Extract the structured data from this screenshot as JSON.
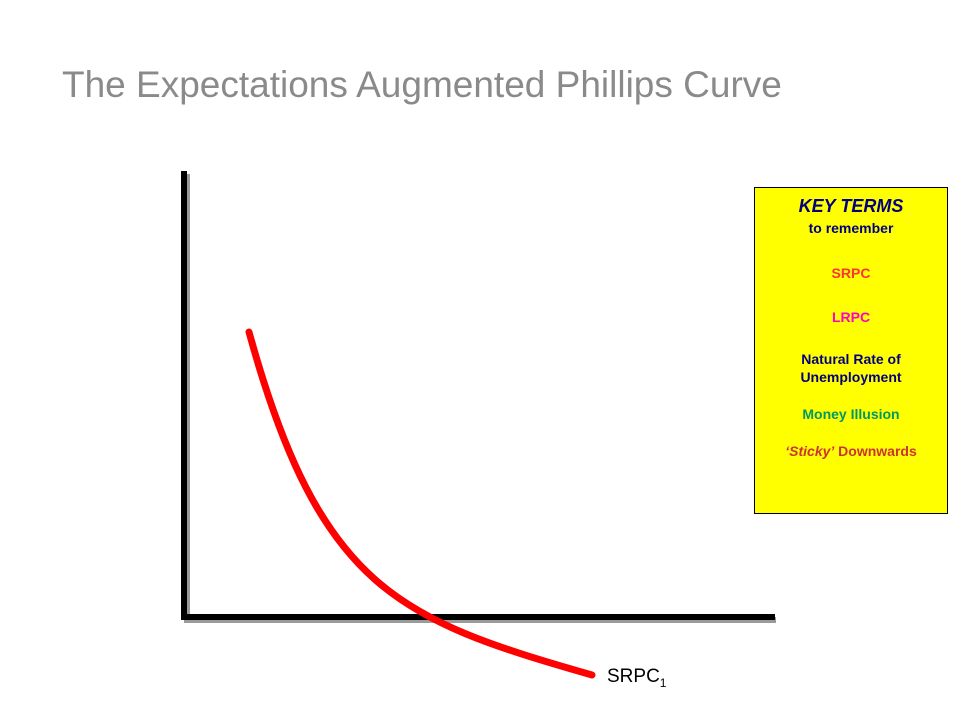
{
  "title": "The Expectations Augmented Phillips Curve",
  "curve_label": {
    "text": "SRPC",
    "subscript": "1"
  },
  "key_terms": {
    "title": "KEY TERMS",
    "subtitle": "to remember",
    "srpc": "SRPC",
    "lrpc": "LRPC",
    "natural_rate_line1": "Natural Rate of",
    "natural_rate_line2": "Unemployment",
    "money_illusion": "Money Illusion",
    "sticky_part": "‘Sticky’",
    "downwards_part": " Downwards"
  },
  "colors": {
    "title": "#8a8a8a",
    "curve": "#ff0000",
    "axes": "#000000",
    "key_box_bg": "#ffff00",
    "srpc": "#ff3333",
    "lrpc": "#ff00cc",
    "natural_rate": "#000080",
    "money_illusion": "#009966",
    "sticky_downwards": "#cc3333"
  }
}
